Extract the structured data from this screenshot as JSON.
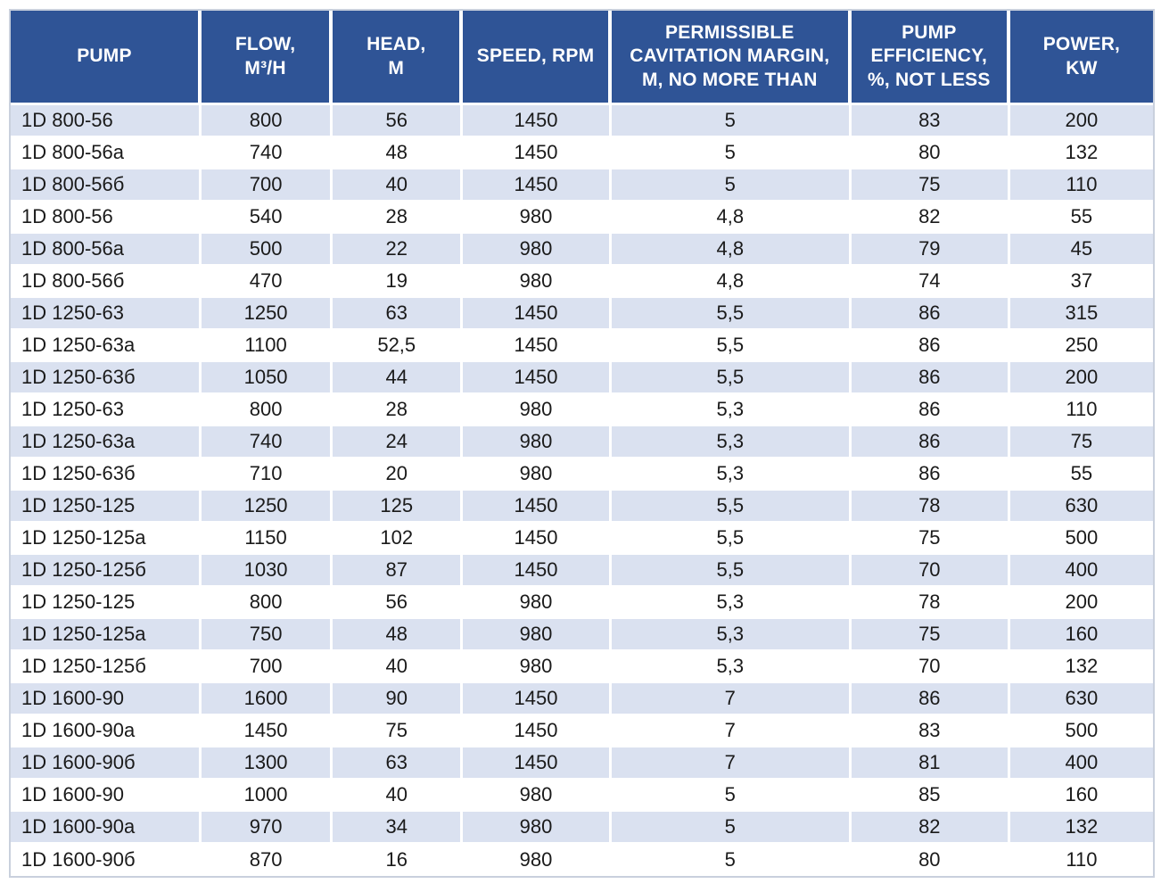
{
  "table": {
    "columns": [
      {
        "id": "pump",
        "label": "PUMP"
      },
      {
        "id": "flow",
        "label": "FLOW,\nM³/H"
      },
      {
        "id": "head",
        "label": "HEAD,\nM"
      },
      {
        "id": "speed",
        "label": "SPEED, RPM"
      },
      {
        "id": "cavitation",
        "label": "PERMISSIBLE\nCAVITATION MARGIN,\nM, NO MORE THAN"
      },
      {
        "id": "efficiency",
        "label": "PUMP\nEFFICIENCY,\n%, NOT LESS"
      },
      {
        "id": "power",
        "label": "POWER,\nKW"
      }
    ],
    "rows": [
      [
        "1D 800-56",
        "800",
        "56",
        "1450",
        "5",
        "83",
        "200"
      ],
      [
        "1D 800-56a",
        "740",
        "48",
        "1450",
        "5",
        "80",
        "132"
      ],
      [
        "1D 800-56б",
        "700",
        "40",
        "1450",
        "5",
        "75",
        "110"
      ],
      [
        "1D 800-56",
        "540",
        "28",
        "980",
        "4,8",
        "82",
        "55"
      ],
      [
        "1D 800-56a",
        "500",
        "22",
        "980",
        "4,8",
        "79",
        "45"
      ],
      [
        "1D 800-56б",
        "470",
        "19",
        "980",
        "4,8",
        "74",
        "37"
      ],
      [
        "1D 1250-63",
        "1250",
        "63",
        "1450",
        "5,5",
        "86",
        "315"
      ],
      [
        "1D 1250-63a",
        "1100",
        "52,5",
        "1450",
        "5,5",
        "86",
        "250"
      ],
      [
        "1D 1250-63б",
        "1050",
        "44",
        "1450",
        "5,5",
        "86",
        "200"
      ],
      [
        "1D 1250-63",
        "800",
        "28",
        "980",
        "5,3",
        "86",
        "110"
      ],
      [
        "1D 1250-63a",
        "740",
        "24",
        "980",
        "5,3",
        "86",
        "75"
      ],
      [
        "1D 1250-63б",
        "710",
        "20",
        "980",
        "5,3",
        "86",
        "55"
      ],
      [
        "1D 1250-125",
        "1250",
        "125",
        "1450",
        "5,5",
        "78",
        "630"
      ],
      [
        "1D 1250-125a",
        "1150",
        "102",
        "1450",
        "5,5",
        "75",
        "500"
      ],
      [
        "1D 1250-125б",
        "1030",
        "87",
        "1450",
        "5,5",
        "70",
        "400"
      ],
      [
        "1D 1250-125",
        "800",
        "56",
        "980",
        "5,3",
        "78",
        "200"
      ],
      [
        "1D 1250-125a",
        "750",
        "48",
        "980",
        "5,3",
        "75",
        "160"
      ],
      [
        "1D 1250-125б",
        "700",
        "40",
        "980",
        "5,3",
        "70",
        "132"
      ],
      [
        "1D 1600-90",
        "1600",
        "90",
        "1450",
        "7",
        "86",
        "630"
      ],
      [
        "1D 1600-90a",
        "1450",
        "75",
        "1450",
        "7",
        "83",
        "500"
      ],
      [
        "1D 1600-90б",
        "1300",
        "63",
        "1450",
        "7",
        "81",
        "400"
      ],
      [
        "1D 1600-90",
        "1000",
        "40",
        "980",
        "5",
        "85",
        "160"
      ],
      [
        "1D 1600-90a",
        "970",
        "34",
        "980",
        "5",
        "82",
        "132"
      ],
      [
        "1D 1600-90б",
        "870",
        "16",
        "980",
        "5",
        "80",
        "110"
      ]
    ],
    "column_widths_pct": [
      16.7,
      11.5,
      11.4,
      13.0,
      21.0,
      13.9,
      12.5
    ]
  },
  "colors": {
    "header_bg": "#2F5496",
    "header_text": "#FFFFFF",
    "row_alt_bg": "#DAE1F0",
    "row_bg": "#FFFFFF",
    "body_text": "#1A1A1A",
    "gridline": "#FFFFFF",
    "outer_border": "#C9D0DD"
  }
}
